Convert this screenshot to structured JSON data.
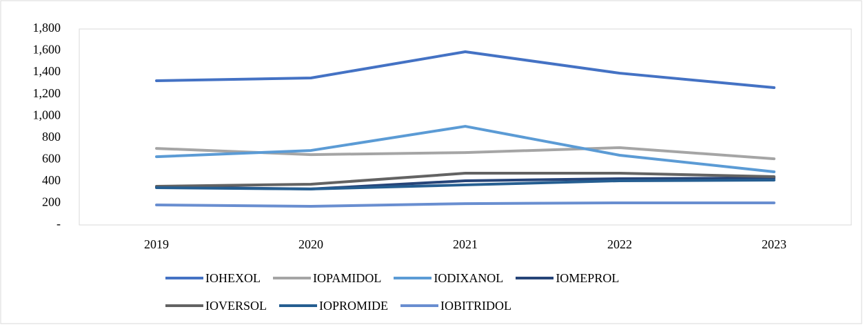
{
  "chart_data": {
    "type": "line",
    "categories": [
      "2019",
      "2020",
      "2021",
      "2022",
      "2023"
    ],
    "series": [
      {
        "name": "IOHEXOL",
        "color": "#4472c4",
        "values": [
          1325,
          1350,
          1591,
          1394,
          1261
        ]
      },
      {
        "name": "IOPAMIDOL",
        "color": "#a5a5a5",
        "values": [
          703,
          646,
          665,
          710,
          608
        ]
      },
      {
        "name": "IODIXANOL",
        "color": "#5b9bd5",
        "values": [
          627,
          684,
          906,
          640,
          488
        ]
      },
      {
        "name": "IOMEPROL",
        "color": "#264478",
        "values": [
          349,
          330,
          406,
          425,
          431
        ]
      },
      {
        "name": "IOVERSOL",
        "color": "#636363",
        "values": [
          355,
          374,
          475,
          475,
          444
        ]
      },
      {
        "name": "IOPROMIDE",
        "color": "#255e91",
        "values": [
          342,
          330,
          368,
          406,
          412
        ]
      },
      {
        "name": "IOBITRIDOL",
        "color": "#698ed0",
        "values": [
          184,
          171,
          196,
          203,
          203
        ]
      }
    ],
    "ylim": [
      0,
      1800
    ],
    "yticks": [
      {
        "value": 0,
        "label": "-"
      },
      200,
      400,
      600,
      800,
      {
        "value": 1000,
        "label": "1,000"
      },
      {
        "value": 1200,
        "label": "1,200"
      },
      {
        "value": 1400,
        "label": "1,400"
      },
      {
        "value": 1600,
        "label": "1,600"
      },
      {
        "value": 1800,
        "label": "1,800"
      }
    ],
    "legend": "bottom"
  }
}
